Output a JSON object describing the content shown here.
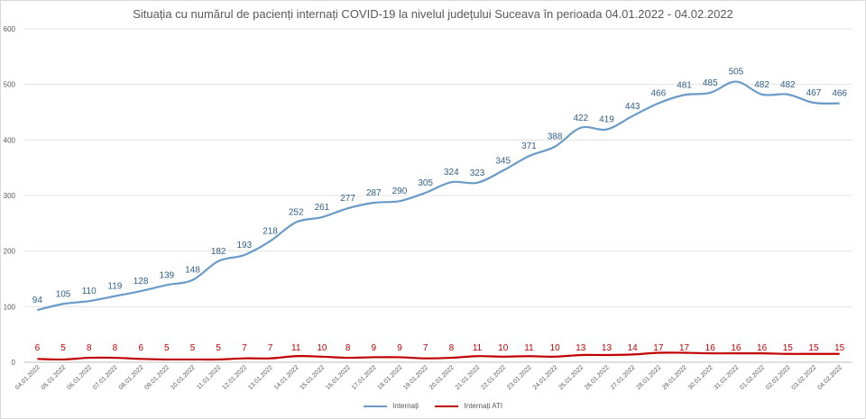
{
  "chart_data": {
    "type": "line",
    "title": "Situația cu numărul de pacienți internați COVID-19 la nivelul județului Suceava în perioada 04.01.2022 - 04.02.2022",
    "xlabel": "",
    "ylabel": "",
    "ylim": [
      0,
      600
    ],
    "yticks": [
      0,
      100,
      200,
      300,
      400,
      500,
      600
    ],
    "grid": true,
    "legend_position": "bottom",
    "categories": [
      "04.01.2022",
      "05.01.2022",
      "06.01.2022",
      "07.01.2022",
      "08.01.2022",
      "09.01.2022",
      "10.01.2022",
      "11.01.2022",
      "12.01.2022",
      "13.01.2022",
      "14.01.2022",
      "15.01.2022",
      "16.01.2022",
      "17.01.2022",
      "18.01.2022",
      "19.01.2022",
      "20.01.2022",
      "21.01.2022",
      "22.01.2022",
      "23.01.2022",
      "24.01.2022",
      "25.01.2022",
      "26.01.2022",
      "27.01.2022",
      "28.01.2022",
      "29.01.2022",
      "30.01.2022",
      "31.01.2022",
      "01.02.2022",
      "02.02.2022",
      "03.02.2022",
      "04.02.2022"
    ],
    "series": [
      {
        "name": "Internați",
        "color": "#6a9bc8",
        "label_color": "#2f5f8a",
        "values": [
          94,
          105,
          110,
          119,
          128,
          139,
          148,
          182,
          193,
          218,
          252,
          261,
          277,
          287,
          290,
          305,
          324,
          323,
          345,
          371,
          388,
          422,
          419,
          443,
          466,
          481,
          485,
          505,
          482,
          482,
          467,
          466
        ]
      },
      {
        "name": "Internați ATI",
        "color": "#c00000",
        "label_color": "#c00000",
        "values": [
          6,
          5,
          8,
          8,
          6,
          5,
          5,
          5,
          7,
          7,
          11,
          10,
          8,
          9,
          9,
          7,
          8,
          11,
          10,
          11,
          10,
          13,
          13,
          14,
          17,
          17,
          16,
          16,
          16,
          15,
          15,
          15
        ]
      }
    ]
  }
}
